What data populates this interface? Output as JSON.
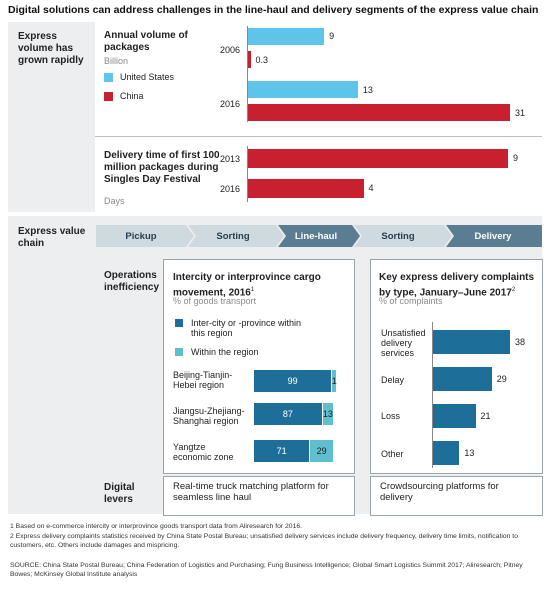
{
  "title": "Digital solutions can address challenges in the line-haul and delivery segments of the express value chain",
  "top_section": {
    "label": "Express volume has grown rapidly",
    "volume_heading": "Annual volume of packages",
    "volume_unit": "Billion",
    "legend": [
      {
        "name": "United States",
        "color": "#5ec4ea"
      },
      {
        "name": "China",
        "color": "#c8202f"
      }
    ],
    "delivery_heading": "Delivery time of first 100 million packages during Singles Day Festival",
    "delivery_unit": "Days"
  },
  "value_chain": {
    "label": "Express value chain",
    "steps": [
      "Pickup",
      "Sorting",
      "Line-haul",
      "Sorting",
      "Delivery"
    ],
    "operations_label": "Operations inefficiency",
    "digital_label": "Digital levers",
    "cargo_heading": "Intercity or interprovince cargo movement, 2016",
    "cargo_footnote_mark": "1",
    "cargo_unit": "% of goods transport",
    "cargo_legend": [
      {
        "name": "Inter-city or -province within this region",
        "color": "#1d6f9a"
      },
      {
        "name": "Within the region",
        "color": "#5fbfcf"
      }
    ],
    "complaints_heading": "Key express delivery complaints by type, January–June 2017",
    "complaints_footnote_mark": "2",
    "complaints_unit": "% of complaints",
    "lever_linehaul": "Real-time truck matching platform for seamless line haul",
    "lever_delivery": "Crowdsourcing platforms for delivery"
  },
  "chart_data": [
    {
      "type": "bar",
      "title": "Annual volume of packages",
      "ylabel": "Billion",
      "categories": [
        "2006",
        "2016"
      ],
      "series": [
        {
          "name": "United States",
          "values": [
            9,
            13
          ]
        },
        {
          "name": "China",
          "values": [
            0.3,
            31
          ]
        }
      ]
    },
    {
      "type": "bar",
      "title": "Delivery time of first 100 million packages during Singles Day Festival",
      "ylabel": "Days",
      "categories": [
        "2013",
        "2016"
      ],
      "values": [
        9,
        4
      ]
    },
    {
      "type": "bar",
      "title": "Intercity or interprovince cargo movement, 2016",
      "ylabel": "% of goods transport",
      "categories": [
        "Beijing-Tianjin-Hebei region",
        "Jiangsu-Zhejiang-Shanghai region",
        "Yangtze economic zone"
      ],
      "series": [
        {
          "name": "Inter-city or -province within this region",
          "values": [
            99,
            87,
            71
          ]
        },
        {
          "name": "Within the region",
          "values": [
            1,
            13,
            29
          ]
        }
      ]
    },
    {
      "type": "bar",
      "title": "Key express delivery complaints by type, January–June 2017",
      "ylabel": "% of complaints",
      "categories": [
        "Unsatisfied delivery services",
        "Delay",
        "Loss",
        "Other"
      ],
      "values": [
        38,
        29,
        21,
        13
      ]
    }
  ],
  "footnotes": [
    "1  Based on e-commerce intercity or interprovince goods transport data from Aliresearch for 2016.",
    "2  Express delivery complaints statistics received by China State Postal Bureau; unsatisfied delivery services include delivery frequency, delivery time limits, notification to customers, etc. Others include damages and mispricing.",
    "SOURCE: China State Postal Bureau; China Federation of Logistics and Purchasing; Fung Business Intelligence; Global Smart Logistics Summit 2017; Aliresearch; Pitney Bowes; McKinsey Global Institute analysis"
  ]
}
